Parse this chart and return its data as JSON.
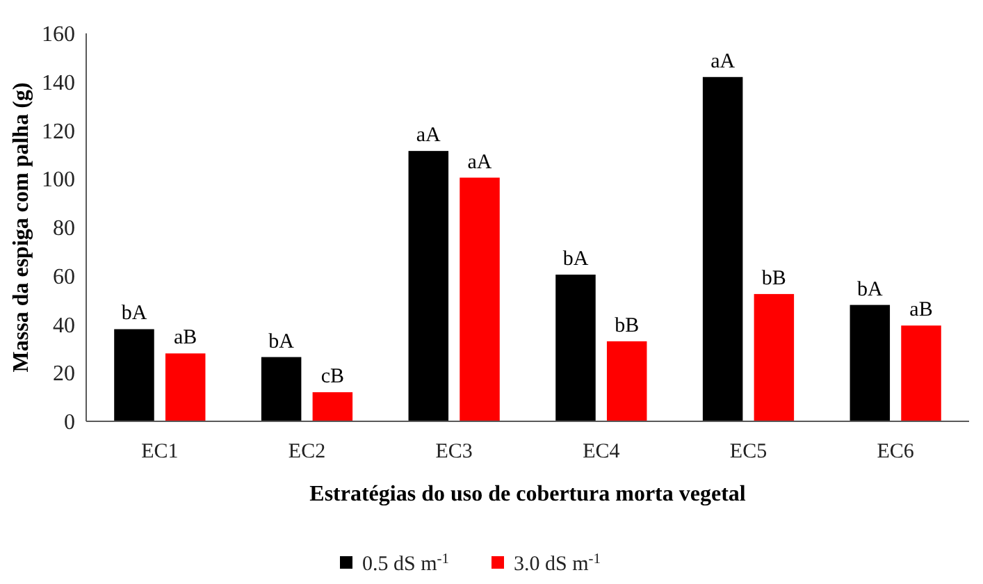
{
  "chart_data": {
    "type": "bar",
    "xlabel": "Estratégias do uso de cobertura morta vegetal",
    "ylabel": "Massa da espiga com palha (g)",
    "categories": [
      "EC1",
      "EC2",
      "EC3",
      "EC4",
      "EC5",
      "EC6"
    ],
    "series": [
      {
        "name": "0.5 dS m$^{-1}$",
        "color": "#000000",
        "values": [
          38,
          26.5,
          111.5,
          60.5,
          142,
          48
        ],
        "value_labels": [
          "bA",
          "bA",
          "aA",
          "bA",
          "aA",
          "bA"
        ]
      },
      {
        "name": "3.0 dS m$^{-1}$",
        "color": "#ff0000",
        "values": [
          28,
          12,
          100.5,
          33,
          52.5,
          39.5
        ],
        "value_labels": [
          "aB",
          "cB",
          "aA",
          "bB",
          "bB",
          "aB"
        ]
      }
    ],
    "ylim": [
      0,
      160
    ],
    "yticks": [
      0,
      20,
      40,
      60,
      80,
      100,
      120,
      140,
      160
    ],
    "grid": false,
    "legend": "bottom"
  }
}
